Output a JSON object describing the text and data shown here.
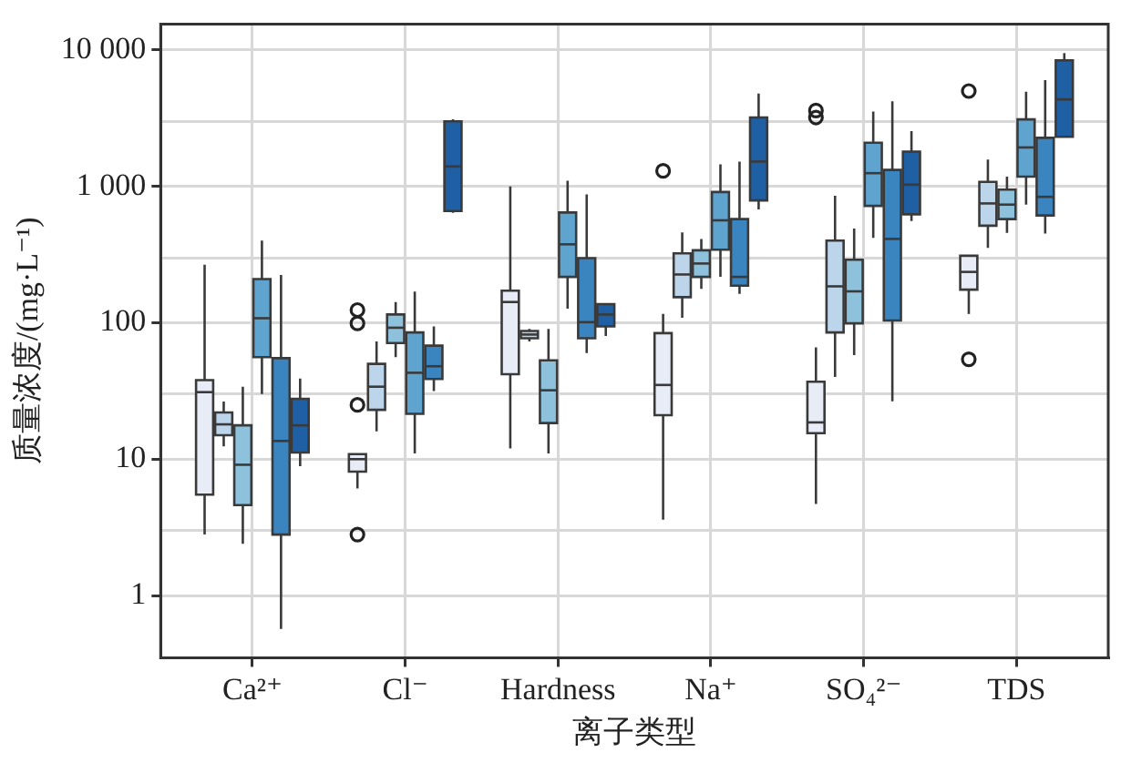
{
  "chart_data": {
    "type": "box",
    "xlabel": "离子类型",
    "ylabel": "质量浓度/(mg·L⁻¹)",
    "categories": [
      "Ca²⁺",
      "Cl⁻",
      "Hardness",
      "Na⁺",
      "SO₄²⁻",
      "TDS"
    ],
    "log": true,
    "grid": true,
    "legend": false,
    "ylim": [
      0.35,
      15500
    ],
    "yticks": [
      1,
      {
        "value": 3,
        "label": null
      },
      10,
      {
        "value": 30,
        "label": null
      },
      100,
      {
        "value": 300,
        "label": null
      },
      {
        "value": 1000,
        "label": "1 000"
      },
      {
        "value": 3000,
        "label": null
      },
      {
        "value": 10000,
        "label": "10 000"
      }
    ],
    "series": [
      {
        "color": "#e8ecf6",
        "boxes": [
          {
            "low": 2.8,
            "q1": 5.5,
            "median": 31,
            "q3": 38,
            "high": 266
          },
          {
            "low": 6.1,
            "q1": 8.1,
            "median": 10,
            "q3": 10.9,
            "high": 10.9,
            "outliers": [
              124,
              99,
              25,
              2.8
            ]
          },
          {
            "low": 12,
            "q1": 42,
            "median": 142,
            "q3": 172,
            "high": 1000
          },
          {
            "low": 3.6,
            "q1": 21,
            "median": 35,
            "q3": 84,
            "high": 116,
            "outliers": [
              1300
            ]
          },
          {
            "low": 4.7,
            "q1": 15.5,
            "median": 18.6,
            "q3": 37,
            "high": 66,
            "outliers": [
              3600,
              3200
            ]
          },
          {
            "low": 116,
            "q1": 175,
            "median": 236,
            "q3": 310,
            "high": 310,
            "outliers": [
              5000,
              54
            ]
          }
        ]
      },
      {
        "color": "#bcd5ea",
        "boxes": [
          {
            "low": 12.4,
            "q1": 15,
            "median": 18,
            "q3": 22,
            "high": 26.5
          },
          {
            "low": 16,
            "q1": 23,
            "median": 34,
            "q3": 50,
            "high": 73
          },
          {
            "low": 73,
            "q1": 77,
            "median": 82,
            "q3": 87,
            "high": 90
          },
          {
            "low": 109,
            "q1": 154,
            "median": 226,
            "q3": 323,
            "high": 460
          },
          {
            "low": 40,
            "q1": 85,
            "median": 185,
            "q3": 400,
            "high": 855
          },
          {
            "low": 354,
            "q1": 515,
            "median": 750,
            "q3": 1080,
            "high": 1570
          }
        ]
      },
      {
        "color": "#8ec1dc",
        "boxes": [
          {
            "low": 2.4,
            "q1": 4.6,
            "median": 9.1,
            "q3": 17.7,
            "high": 34
          },
          {
            "low": 56,
            "q1": 71,
            "median": 92,
            "q3": 115,
            "high": 142
          },
          {
            "low": 11,
            "q1": 18.4,
            "median": 32,
            "q3": 53,
            "high": 90
          },
          {
            "low": 177,
            "q1": 217,
            "median": 272,
            "q3": 340,
            "high": 412
          },
          {
            "low": 58,
            "q1": 99,
            "median": 170,
            "q3": 290,
            "high": 490
          },
          {
            "low": 456,
            "q1": 576,
            "median": 735,
            "q3": 946,
            "high": 1180
          }
        ]
      },
      {
        "color": "#5fa3cf",
        "boxes": [
          {
            "low": 30,
            "q1": 56,
            "median": 108,
            "q3": 209,
            "high": 400
          },
          {
            "low": 11,
            "q1": 21.5,
            "median": 43,
            "q3": 85,
            "high": 169
          },
          {
            "low": 127,
            "q1": 217,
            "median": 376,
            "q3": 644,
            "high": 1100
          },
          {
            "low": 217,
            "q1": 343,
            "median": 564,
            "q3": 910,
            "high": 1450
          },
          {
            "low": 420,
            "q1": 720,
            "median": 1250,
            "q3": 2090,
            "high": 3540
          },
          {
            "low": 735,
            "q1": 1180,
            "median": 1930,
            "q3": 3100,
            "high": 4950
          }
        ]
      },
      {
        "color": "#3a85bf",
        "boxes": [
          {
            "low": 0.57,
            "q1": 2.8,
            "median": 13.6,
            "q3": 55,
            "high": 224
          },
          {
            "low": 31.6,
            "q1": 38.7,
            "median": 48,
            "q3": 68,
            "high": 94
          },
          {
            "low": 60,
            "q1": 77,
            "median": 101,
            "q3": 298,
            "high": 873
          },
          {
            "low": 163,
            "q1": 187,
            "median": 217,
            "q3": 576,
            "high": 1520
          },
          {
            "low": 26.6,
            "q1": 104,
            "median": 412,
            "q3": 1320,
            "high": 4210
          },
          {
            "low": 451,
            "q1": 612,
            "median": 838,
            "q3": 2270,
            "high": 6010
          }
        ]
      },
      {
        "color": "#1f5fa3",
        "boxes": [
          {
            "low": 8.9,
            "q1": 11.2,
            "median": 17.7,
            "q3": 27.7,
            "high": 39
          },
          {
            "low": 640,
            "q1": 660,
            "median": 1400,
            "q3": 3000,
            "high": 3100
          },
          {
            "low": 80,
            "q1": 94,
            "median": 115,
            "q3": 137,
            "high": 137
          },
          {
            "low": 677,
            "q1": 789,
            "median": 1520,
            "q3": 3200,
            "high": 4800
          },
          {
            "low": 558,
            "q1": 624,
            "median": 1030,
            "q3": 1800,
            "high": 2540
          },
          {
            "low": 2310,
            "q1": 2310,
            "median": 4340,
            "q3": 8400,
            "high": 9490
          }
        ]
      }
    ]
  }
}
